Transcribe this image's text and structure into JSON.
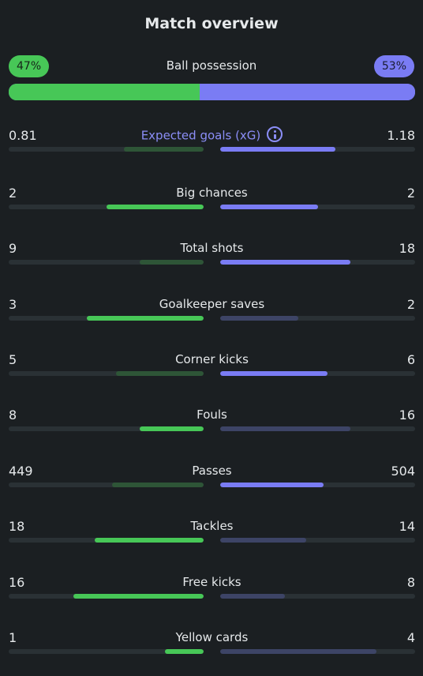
{
  "title": "Match overview",
  "possession": {
    "label": "Ball possession",
    "home_text": "47%",
    "away_text": "53%",
    "home_fraction": 0.47,
    "colors": {
      "home": "#47c757",
      "away": "#7a7cf4"
    }
  },
  "stats": [
    {
      "label": "Expected goals (xG)",
      "home": "0.81",
      "away": "1.18",
      "home_fraction": 0.41,
      "away_fraction": 0.59,
      "home_strong": false,
      "away_strong": true,
      "info_icon": "info-icon"
    },
    {
      "label": "Big chances",
      "home": "2",
      "away": "2",
      "home_fraction": 0.5,
      "away_fraction": 0.5,
      "home_strong": true,
      "away_strong": true
    },
    {
      "label": "Total shots",
      "home": "9",
      "away": "18",
      "home_fraction": 0.33,
      "away_fraction": 0.67,
      "home_strong": false,
      "away_strong": true
    },
    {
      "label": "Goalkeeper saves",
      "home": "3",
      "away": "2",
      "home_fraction": 0.6,
      "away_fraction": 0.4,
      "home_strong": true,
      "away_strong": false
    },
    {
      "label": "Corner kicks",
      "home": "5",
      "away": "6",
      "home_fraction": 0.45,
      "away_fraction": 0.55,
      "home_strong": false,
      "away_strong": true
    },
    {
      "label": "Fouls",
      "home": "8",
      "away": "16",
      "home_fraction": 0.33,
      "away_fraction": 0.67,
      "home_strong": true,
      "away_strong": false
    },
    {
      "label": "Passes",
      "home": "449",
      "away": "504",
      "home_fraction": 0.47,
      "away_fraction": 0.53,
      "home_strong": false,
      "away_strong": true
    },
    {
      "label": "Tackles",
      "home": "18",
      "away": "14",
      "home_fraction": 0.56,
      "away_fraction": 0.44,
      "home_strong": true,
      "away_strong": false
    },
    {
      "label": "Free kicks",
      "home": "16",
      "away": "8",
      "home_fraction": 0.67,
      "away_fraction": 0.33,
      "home_strong": true,
      "away_strong": false
    },
    {
      "label": "Yellow cards",
      "home": "1",
      "away": "4",
      "home_fraction": 0.2,
      "away_fraction": 0.8,
      "home_strong": true,
      "away_strong": false
    }
  ]
}
